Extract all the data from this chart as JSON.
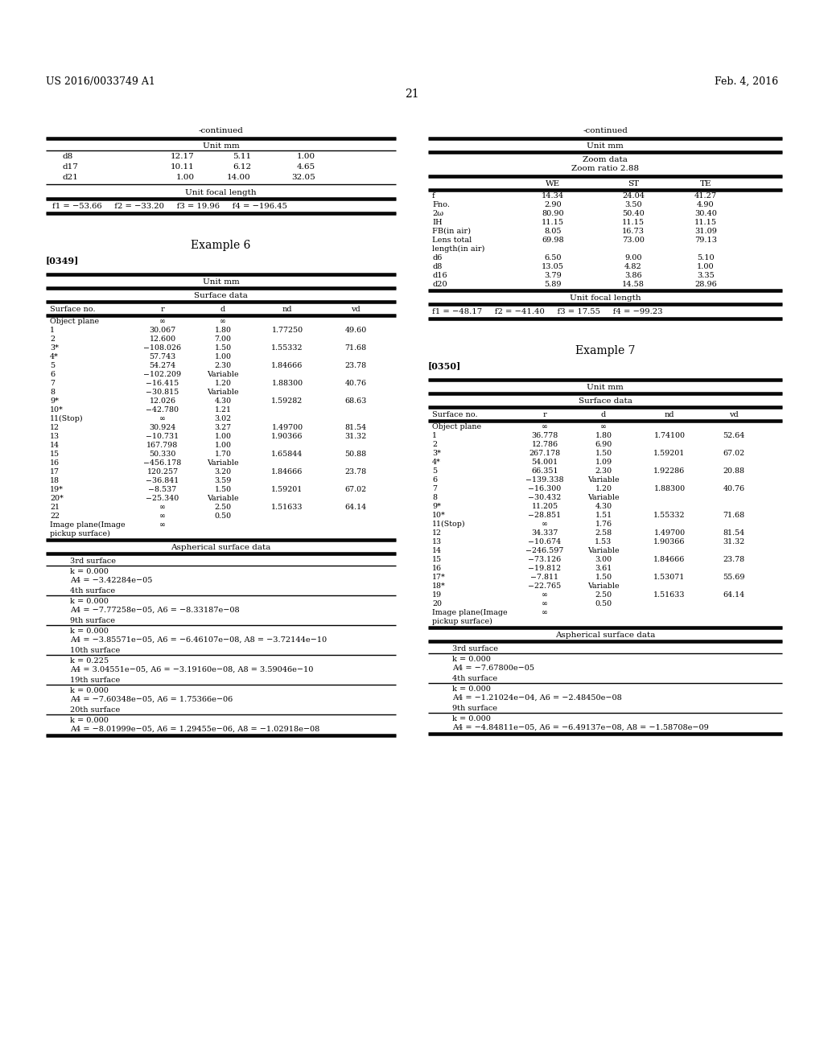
{
  "page_number": "21",
  "patent_number": "US 2016/0033749 A1",
  "patent_date": "Feb. 4, 2016",
  "background_color": "#ffffff",
  "left_column": {
    "continued_label": "-continued",
    "section1_header": "Unit mm",
    "section1_data": [
      [
        "d8",
        "12.17",
        "5.11",
        "1.00"
      ],
      [
        "d17",
        "10.11",
        "6.12",
        "4.65"
      ],
      [
        "d21",
        "1.00",
        "14.00",
        "32.05"
      ]
    ],
    "focal_length_header": "Unit focal length",
    "focal_length_data": "f1 = −53.66     f2 = −33.20     f3 = 19.96     f4 = −196.45",
    "example_title": "Example 6",
    "paragraph_ref": "[0349]",
    "section2_header": "Unit mm",
    "surface_data_header": "Surface data",
    "surface_col_headers": [
      "Surface no.",
      "r",
      "d",
      "nd",
      "vd"
    ],
    "surface_rows": [
      [
        "Object plane",
        "∞",
        "∞",
        "",
        ""
      ],
      [
        "1",
        "30.067",
        "1.80",
        "1.77250",
        "49.60"
      ],
      [
        "2",
        "12.600",
        "7.00",
        "",
        ""
      ],
      [
        "3*",
        "−108.026",
        "1.50",
        "1.55332",
        "71.68"
      ],
      [
        "4*",
        "57.743",
        "1.00",
        "",
        ""
      ],
      [
        "5",
        "54.274",
        "2.30",
        "1.84666",
        "23.78"
      ],
      [
        "6",
        "−102.209",
        "Variable",
        "",
        ""
      ],
      [
        "7",
        "−16.415",
        "1.20",
        "1.88300",
        "40.76"
      ],
      [
        "8",
        "−30.815",
        "Variable",
        "",
        ""
      ],
      [
        "9*",
        "12.026",
        "4.30",
        "1.59282",
        "68.63"
      ],
      [
        "10*",
        "−42.780",
        "1.21",
        "",
        ""
      ],
      [
        "11(Stop)",
        "∞",
        "3.02",
        "",
        ""
      ],
      [
        "12",
        "30.924",
        "3.27",
        "1.49700",
        "81.54"
      ],
      [
        "13",
        "−10.731",
        "1.00",
        "1.90366",
        "31.32"
      ],
      [
        "14",
        "167.798",
        "1.00",
        "",
        ""
      ],
      [
        "15",
        "50.330",
        "1.70",
        "1.65844",
        "50.88"
      ],
      [
        "16",
        "−456.178",
        "Variable",
        "",
        ""
      ],
      [
        "17",
        "120.257",
        "3.20",
        "1.84666",
        "23.78"
      ],
      [
        "18",
        "−36.841",
        "3.59",
        "",
        ""
      ],
      [
        "19*",
        "−8.537",
        "1.50",
        "1.59201",
        "67.02"
      ],
      [
        "20*",
        "−25.340",
        "Variable",
        "",
        ""
      ],
      [
        "21",
        "∞",
        "2.50",
        "1.51633",
        "64.14"
      ],
      [
        "22",
        "∞",
        "0.50",
        "",
        ""
      ],
      [
        "Image plane(Image\npickup surface)",
        "∞",
        "",
        "",
        ""
      ]
    ],
    "aspherical_header": "Aspherical surface data",
    "aspherical_sections": [
      {
        "label": "3rd surface",
        "lines": [
          "k = 0.000",
          "A4 = −3.42284e−05"
        ]
      },
      {
        "label": "4th surface",
        "lines": [
          "k = 0.000",
          "A4 = −7.77258e−05, A6 = −8.33187e−08"
        ]
      },
      {
        "label": "9th surface",
        "lines": [
          "k = 0.000",
          "A4 = −3.85571e−05, A6 = −6.46107e−08, A8 = −3.72144e−10"
        ]
      },
      {
        "label": "10th surface",
        "lines": [
          "k = 0.225",
          "A4 = 3.04551e−05, A6 = −3.19160e−08, A8 = 3.59046e−10"
        ]
      },
      {
        "label": "19th surface",
        "lines": [
          "k = 0.000",
          "A4 = −7.60348e−05, A6 = 1.75366e−06"
        ]
      },
      {
        "label": "20th surface",
        "lines": [
          "k = 0.000",
          "A4 = −8.01999e−05, A6 = 1.29455e−06, A8 = −1.02918e−08"
        ]
      }
    ]
  },
  "right_column": {
    "continued_label": "-continued",
    "section1_header": "Unit mm",
    "zoom_data_header": "Zoom data",
    "zoom_ratio": "Zoom ratio 2.88",
    "zoom_col_headers": [
      "",
      "WE",
      "ST",
      "TE"
    ],
    "zoom_rows": [
      [
        "f",
        "14.34",
        "24.04",
        "41.27"
      ],
      [
        "Fno.",
        "2.90",
        "3.50",
        "4.90"
      ],
      [
        "2ω",
        "80.90",
        "50.40",
        "30.40"
      ],
      [
        "IH",
        "11.15",
        "11.15",
        "11.15"
      ],
      [
        "FB(in air)",
        "8.05",
        "16.73",
        "31.09"
      ],
      [
        "Lens total\nlength(in air)",
        "69.98",
        "73.00",
        "79.13"
      ],
      [
        "d6",
        "6.50",
        "9.00",
        "5.10"
      ],
      [
        "d8",
        "13.05",
        "4.82",
        "1.00"
      ],
      [
        "d16",
        "3.79",
        "3.86",
        "3.35"
      ],
      [
        "d20",
        "5.89",
        "14.58",
        "28.96"
      ]
    ],
    "focal_length_header": "Unit focal length",
    "focal_length_data": "f1 = −48.17     f2 = −41.40     f3 = 17.55     f4 = −99.23",
    "example_title": "Example 7",
    "paragraph_ref": "[0350]",
    "section2_header": "Unit mm",
    "surface_data_header": "Surface data",
    "surface_col_headers": [
      "Surface no.",
      "r",
      "d",
      "nd",
      "vd"
    ],
    "surface_rows": [
      [
        "Object plane",
        "∞",
        "∞",
        "",
        ""
      ],
      [
        "1",
        "36.778",
        "1.80",
        "1.74100",
        "52.64"
      ],
      [
        "2",
        "12.786",
        "6.90",
        "",
        ""
      ],
      [
        "3*",
        "267.178",
        "1.50",
        "1.59201",
        "67.02"
      ],
      [
        "4*",
        "54.001",
        "1.09",
        "",
        ""
      ],
      [
        "5",
        "66.351",
        "2.30",
        "1.92286",
        "20.88"
      ],
      [
        "6",
        "−139.338",
        "Variable",
        "",
        ""
      ],
      [
        "7",
        "−16.300",
        "1.20",
        "1.88300",
        "40.76"
      ],
      [
        "8",
        "−30.432",
        "Variable",
        "",
        ""
      ],
      [
        "9*",
        "11.205",
        "4.30",
        "",
        ""
      ],
      [
        "10*",
        "−28.851",
        "1.51",
        "1.55332",
        "71.68"
      ],
      [
        "11(Stop)",
        "∞",
        "1.76",
        "",
        ""
      ],
      [
        "12",
        "34.337",
        "2.58",
        "1.49700",
        "81.54"
      ],
      [
        "13",
        "−10.674",
        "1.53",
        "1.90366",
        "31.32"
      ],
      [
        "14",
        "−246.597",
        "Variable",
        "",
        ""
      ],
      [
        "15",
        "−73.126",
        "3.00",
        "1.84666",
        "23.78"
      ],
      [
        "16",
        "−19.812",
        "3.61",
        "",
        ""
      ],
      [
        "17*",
        "−7.811",
        "1.50",
        "1.53071",
        "55.69"
      ],
      [
        "18*",
        "−22.765",
        "Variable",
        "",
        ""
      ],
      [
        "19",
        "∞",
        "2.50",
        "1.51633",
        "64.14"
      ],
      [
        "20",
        "∞",
        "0.50",
        "",
        ""
      ],
      [
        "Image plane(Image\npickup surface)",
        "∞",
        "",
        "",
        ""
      ]
    ],
    "aspherical_header": "Aspherical surface data",
    "aspherical_sections": [
      {
        "label": "3rd surface",
        "lines": [
          "k = 0.000",
          "A4 = −7.67800e−05"
        ]
      },
      {
        "label": "4th surface",
        "lines": [
          "k = 0.000",
          "A4 = −1.21024e−04, A6 = −2.48450e−08"
        ]
      },
      {
        "label": "9th surface",
        "lines": [
          "k = 0.000",
          "A4 = −4.84811e−05, A6 = −6.49137e−08, A8 = −1.58708e−09"
        ]
      }
    ]
  }
}
